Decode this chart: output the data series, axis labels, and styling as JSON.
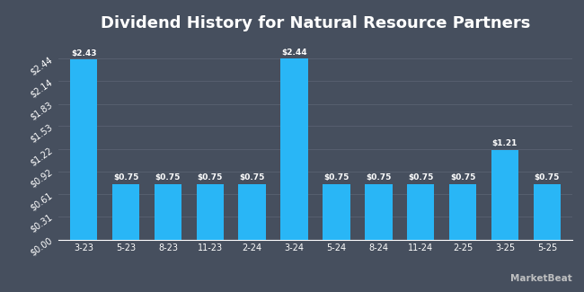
{
  "title": "Dividend History for Natural Resource Partners",
  "categories": [
    "3-23",
    "5-23",
    "8-23",
    "11-23",
    "2-24",
    "3-24",
    "5-24",
    "8-24",
    "11-24",
    "2-25",
    "3-25",
    "5-25"
  ],
  "values": [
    2.43,
    0.75,
    0.75,
    0.75,
    0.75,
    2.44,
    0.75,
    0.75,
    0.75,
    0.75,
    1.21,
    0.75
  ],
  "bar_color": "#29b6f6",
  "background_color": "#464f5e",
  "text_color": "#ffffff",
  "grid_color": "#5a6272",
  "yticks": [
    0.0,
    0.31,
    0.61,
    0.92,
    1.22,
    1.53,
    1.83,
    2.14,
    2.44
  ],
  "ylim": [
    0,
    2.72
  ],
  "title_fontsize": 13,
  "tick_fontsize": 7,
  "bar_label_fontsize": 6.5,
  "watermark": "MarketBeat"
}
